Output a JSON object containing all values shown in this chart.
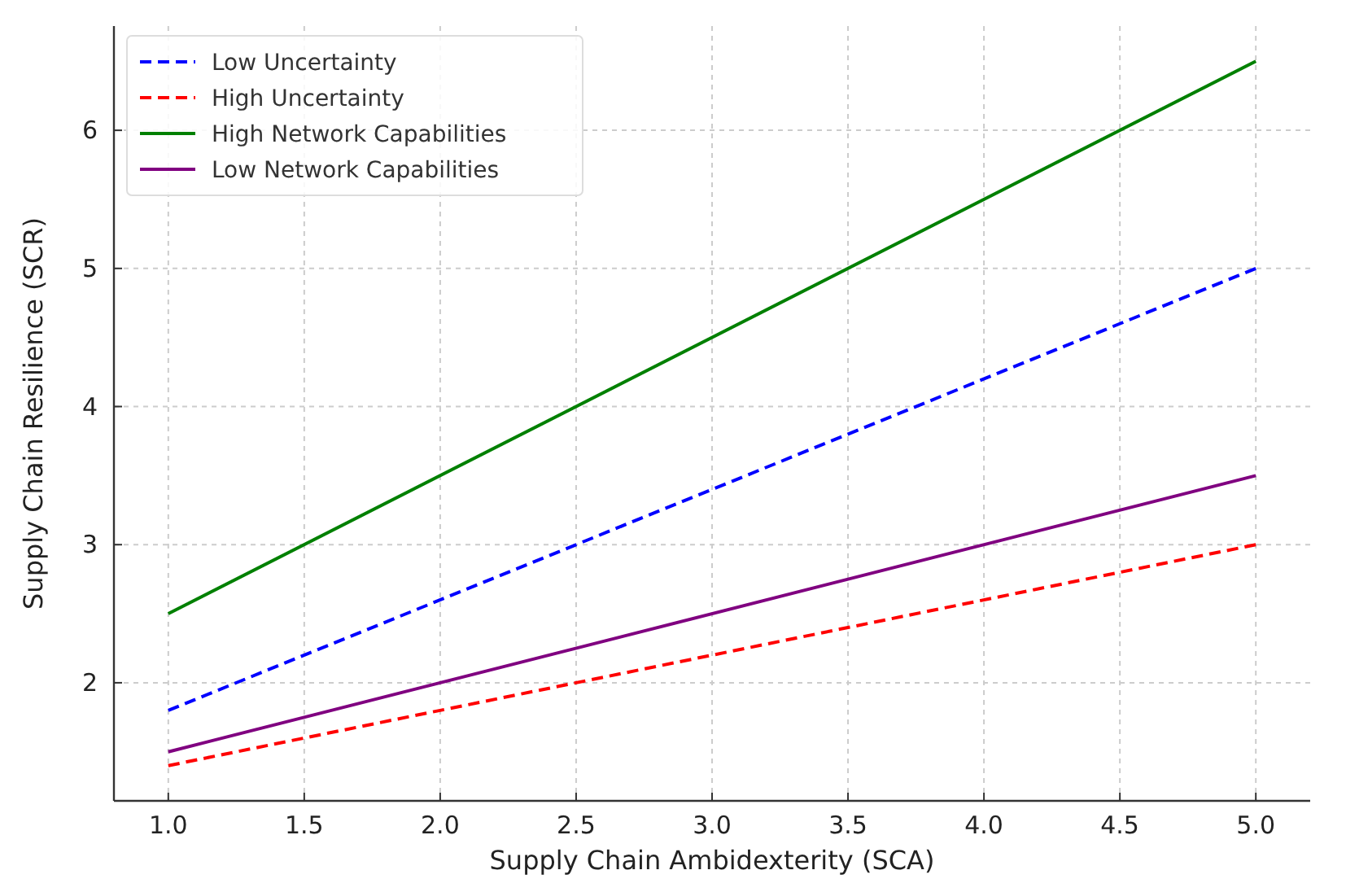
{
  "chart_data": {
    "type": "line",
    "xlabel": "Supply Chain Ambidexterity (SCA)",
    "ylabel": "Supply Chain Resilience (SCR)",
    "x": [
      1,
      5
    ],
    "series": [
      {
        "name": "Low Uncertainty",
        "color": "#0000ff",
        "values": [
          1.8,
          5.0
        ],
        "line_style": "dashed"
      },
      {
        "name": "High Uncertainty",
        "color": "#ff0000",
        "values": [
          1.4,
          3.0
        ],
        "line_style": "dashed"
      },
      {
        "name": "High Network Capabilities",
        "color": "#008000",
        "values": [
          2.5,
          6.5
        ],
        "line_style": "solid"
      },
      {
        "name": "Low Network Capabilities",
        "color": "#800080",
        "values": [
          1.5,
          3.5
        ],
        "line_style": "solid"
      }
    ],
    "xlim": [
      0.8,
      5.2
    ],
    "xticks": [
      {
        "value": 1,
        "label": "1.0"
      },
      {
        "value": 1.5,
        "label": "1.5"
      },
      {
        "value": 2,
        "label": "2.0"
      },
      {
        "value": 2.5,
        "label": "2.5"
      },
      {
        "value": 3,
        "label": "3.0"
      },
      {
        "value": 3.5,
        "label": "3.5"
      },
      {
        "value": 4,
        "label": "4.0"
      },
      {
        "value": 4.5,
        "label": "4.5"
      },
      {
        "value": 5,
        "label": "5.0"
      }
    ],
    "ylim": [
      1.145,
      6.755
    ],
    "yticks": [
      2,
      3,
      4,
      5,
      6
    ],
    "grid": true,
    "legend": "top left"
  }
}
